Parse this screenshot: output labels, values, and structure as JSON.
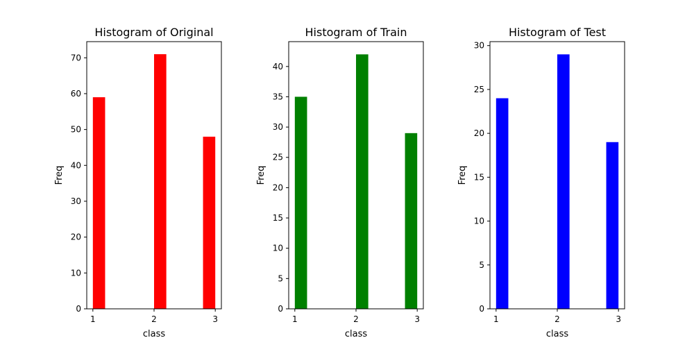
{
  "chart_data": [
    {
      "type": "bar",
      "title": "Histogram of Original",
      "xlabel": "class",
      "ylabel": "Freq",
      "color": "#ff0000",
      "bars": [
        {
          "x": 1.1,
          "value": 59
        },
        {
          "x": 2.1,
          "value": 71
        },
        {
          "x": 2.9,
          "value": 48
        }
      ],
      "bar_width": 0.2,
      "xlim": [
        0.9,
        3.1
      ],
      "ylim": [
        0,
        74.5
      ],
      "xticks": [
        1,
        2,
        3
      ],
      "xtick_labels": [
        "1",
        "2",
        "3"
      ],
      "yticks": [
        0,
        10,
        20,
        30,
        40,
        50,
        60,
        70
      ],
      "ytick_labels": [
        "0",
        "10",
        "20",
        "30",
        "40",
        "50",
        "60",
        "70"
      ]
    },
    {
      "type": "bar",
      "title": "Histogram of Train",
      "xlabel": "class",
      "ylabel": "Freq",
      "color": "#008000",
      "bars": [
        {
          "x": 1.1,
          "value": 35
        },
        {
          "x": 2.1,
          "value": 42
        },
        {
          "x": 2.9,
          "value": 29
        }
      ],
      "bar_width": 0.2,
      "xlim": [
        0.9,
        3.1
      ],
      "ylim": [
        0,
        44.1
      ],
      "xticks": [
        1,
        2,
        3
      ],
      "xtick_labels": [
        "1",
        "2",
        "3"
      ],
      "yticks": [
        0,
        5,
        10,
        15,
        20,
        25,
        30,
        35,
        40
      ],
      "ytick_labels": [
        "0",
        "5",
        "10",
        "15",
        "20",
        "25",
        "30",
        "35",
        "40"
      ]
    },
    {
      "type": "bar",
      "title": "Histogram of Test",
      "xlabel": "class",
      "ylabel": "Freq",
      "color": "#0000ff",
      "bars": [
        {
          "x": 1.1,
          "value": 24
        },
        {
          "x": 2.1,
          "value": 29
        },
        {
          "x": 2.9,
          "value": 19
        }
      ],
      "bar_width": 0.2,
      "xlim": [
        0.9,
        3.1
      ],
      "ylim": [
        0,
        30.45
      ],
      "xticks": [
        1,
        2,
        3
      ],
      "xtick_labels": [
        "1",
        "2",
        "3"
      ],
      "yticks": [
        0,
        5,
        10,
        15,
        20,
        25,
        30
      ],
      "ytick_labels": [
        "0",
        "5",
        "10",
        "15",
        "20",
        "25",
        "30"
      ]
    }
  ]
}
